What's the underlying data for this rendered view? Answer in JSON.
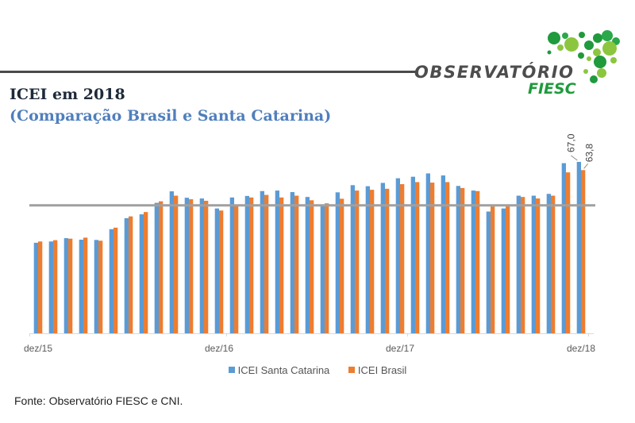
{
  "header": {
    "title": "ICEI em 2018",
    "subtitle": "(Comparação Brasil e Santa Catarina)",
    "logo_text_1": "OBSERVATÓRIO",
    "logo_text_2": "FIESC"
  },
  "chart_data": {
    "type": "bar",
    "tick_labels": [
      "dez/15",
      "dez/16",
      "dez/17",
      "dez/18"
    ],
    "x_range": [
      "dez/15",
      "dez/18"
    ],
    "frequency": "monthly",
    "reference_line": 50,
    "ylim": [
      0,
      75
    ],
    "y_axis_visible": false,
    "grid": false,
    "legend_position": "bottom",
    "series": [
      {
        "name": "ICEI Santa Catarina",
        "color": "#5b9bd5",
        "values": [
          35.4,
          35.9,
          37.2,
          36.6,
          36.5,
          40.7,
          45.0,
          46.5,
          51.0,
          55.5,
          53.0,
          52.7,
          48.8,
          53.1,
          53.7,
          55.6,
          55.8,
          55.2,
          53.3,
          50.1,
          55.1,
          57.9,
          57.5,
          58.8,
          60.6,
          61.2,
          62.5,
          61.7,
          57.6,
          55.8,
          47.6,
          48.8,
          53.8,
          53.8,
          54.5,
          66.5,
          67.0
        ]
      },
      {
        "name": "ICEI Brasil",
        "color": "#ed7d31",
        "values": [
          35.9,
          36.4,
          37.0,
          37.4,
          36.2,
          41.3,
          45.7,
          47.4,
          51.6,
          53.8,
          52.4,
          51.8,
          48.0,
          49.7,
          53.1,
          54.1,
          53.1,
          53.8,
          52.0,
          50.8,
          52.6,
          55.8,
          56.1,
          56.5,
          58.3,
          59.1,
          58.9,
          59.1,
          56.8,
          55.6,
          49.6,
          49.6,
          53.3,
          52.7,
          53.8,
          62.9,
          63.8
        ]
      }
    ],
    "data_labels": {
      "sc_last": "67,0",
      "br_last": "63,8"
    }
  },
  "footer": {
    "source": "Fonte: Observatório FIESC e CNI."
  }
}
